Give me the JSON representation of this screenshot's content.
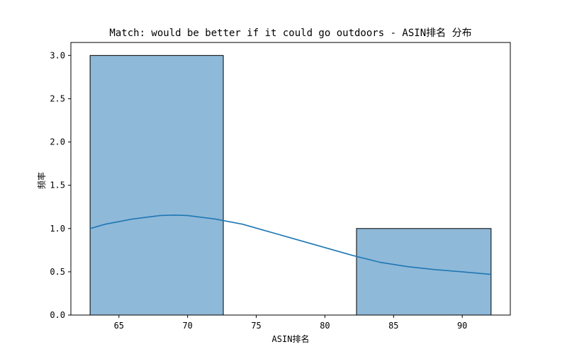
{
  "chart_data": {
    "type": "bar",
    "title": "Match: would be better if it could go outdoors - ASIN排名 分布",
    "xlabel": "ASIN排名",
    "ylabel": "频率",
    "xlim": [
      61.5,
      93.5
    ],
    "ylim": [
      0,
      3.15
    ],
    "x_ticks": [
      65,
      70,
      75,
      80,
      85,
      90
    ],
    "y_ticks": [
      "0.0",
      "0.5",
      "1.0",
      "1.5",
      "2.0",
      "2.5",
      "3.0"
    ],
    "bins": [
      {
        "x_start": 62.9,
        "x_end": 72.6,
        "count": 3
      },
      {
        "x_start": 72.6,
        "x_end": 82.3,
        "count": 0
      },
      {
        "x_start": 82.3,
        "x_end": 92.1,
        "count": 1
      }
    ],
    "kde": {
      "x": [
        62.9,
        64,
        66,
        68,
        69,
        70,
        72,
        74,
        76,
        78,
        80,
        82,
        84,
        86,
        88,
        90,
        92.1
      ],
      "y": [
        1.0,
        1.05,
        1.11,
        1.15,
        1.155,
        1.15,
        1.11,
        1.05,
        0.96,
        0.87,
        0.78,
        0.69,
        0.61,
        0.56,
        0.525,
        0.5,
        0.47
      ]
    },
    "colors": {
      "bar_fill": "#8fb9d9",
      "bar_edge": "#000000",
      "kde_line": "#1f77b4"
    },
    "grid": false,
    "legend": "none"
  }
}
